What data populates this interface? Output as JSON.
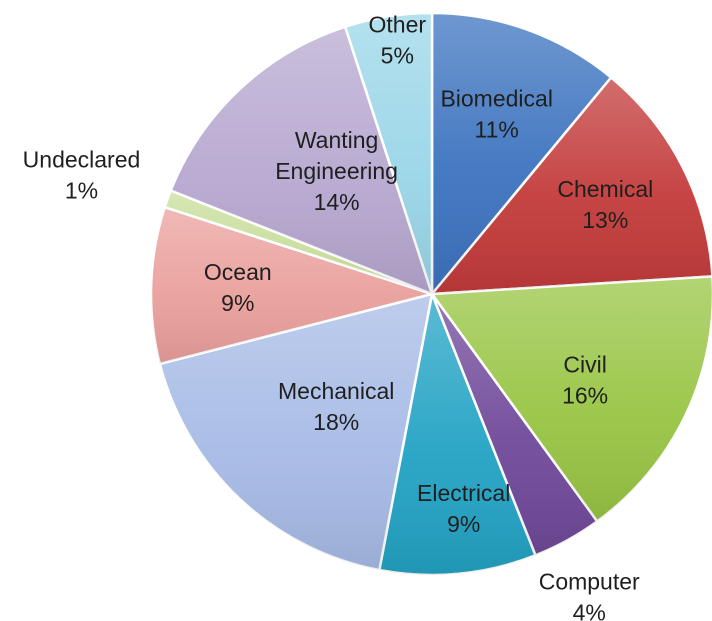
{
  "chart_data": {
    "type": "pie",
    "title": "",
    "slices": [
      {
        "name": "Biomedical",
        "percent_label": "11%",
        "value": 11,
        "color": "#3c73bf"
      },
      {
        "name": "Chemical",
        "percent_label": "13%",
        "value": 13,
        "color": "#c33a3a"
      },
      {
        "name": "Civil",
        "percent_label": "16%",
        "value": 16,
        "color": "#98c544"
      },
      {
        "name": "Computer",
        "percent_label": "4%",
        "value": 4,
        "color": "#70499a"
      },
      {
        "name": "Electrical",
        "percent_label": "9%",
        "value": 9,
        "color": "#23a3c4"
      },
      {
        "name": "Mechanical",
        "percent_label": "18%",
        "value": 18,
        "color": "#a7bbe6"
      },
      {
        "name": "Ocean",
        "percent_label": "9%",
        "value": 9,
        "color": "#eaa09c"
      },
      {
        "name": "Undeclared",
        "percent_label": "1%",
        "value": 1,
        "color": "#c8de9c"
      },
      {
        "name": "Wanting Engineering",
        "percent_label": "14%",
        "value": 14,
        "color": "#b7a8d0"
      },
      {
        "name": "Other",
        "percent_label": "5%",
        "value": 5,
        "color": "#9ad6e8"
      }
    ]
  }
}
